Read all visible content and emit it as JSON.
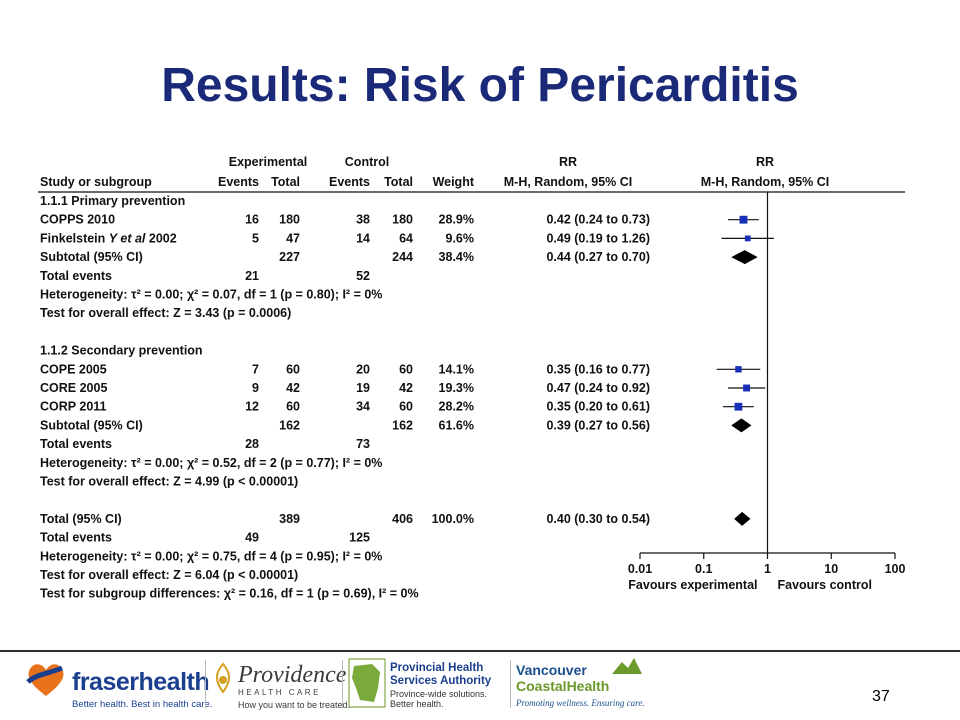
{
  "slide": {
    "title": "Results: Risk of Pericarditis",
    "page_number": "37"
  },
  "footer": {
    "fraser": {
      "name": "fraserhealth",
      "tagline": "Better health. Best in health care."
    },
    "providence": {
      "name": "Providence",
      "sub": "HEALTH CARE",
      "tagline": "How you want to be treated."
    },
    "phsa": {
      "name_line1": "Provincial Health",
      "name_line2": "Services Authority",
      "tag_line1": "Province-wide solutions.",
      "tag_line2": "Better health."
    },
    "vch": {
      "name_line1": "Vancouver",
      "name_line2": "CoastalHealth",
      "tagline": "Promoting wellness. Ensuring care."
    }
  },
  "chart_data": {
    "type": "forest",
    "headers": {
      "experimental": "Experimental",
      "control": "Control",
      "rr": "RR",
      "rr_plot": "RR",
      "study": "Study or subgroup",
      "events": "Events",
      "total": "Total",
      "events_c": "Events",
      "total_c": "Total",
      "weight": "Weight",
      "method": "M-H, Random, 95% CI",
      "method_plot": "M-H, Random, 95% CI"
    },
    "rows": [
      {
        "kind": "group",
        "label": "1.1.1 Primary prevention"
      },
      {
        "kind": "study",
        "label": "COPPS 2010",
        "e_events": "16",
        "e_total": "180",
        "c_events": "38",
        "c_total": "180",
        "weight": "28.9%",
        "rr_text": "0.42 (0.24 to 0.73)",
        "rr": 0.42,
        "lo": 0.24,
        "hi": 0.73,
        "w": 28.9
      },
      {
        "kind": "study",
        "label_parts": [
          "Finkelstein ",
          "Y et al",
          " 2002"
        ],
        "label": "Finkelstein Y et al 2002",
        "e_events": "5",
        "e_total": "47",
        "c_events": "14",
        "c_total": "64",
        "weight": "9.6%",
        "rr_text": "0.49 (0.19 to 1.26)",
        "rr": 0.49,
        "lo": 0.19,
        "hi": 1.26,
        "w": 9.6
      },
      {
        "kind": "subtotal",
        "label": "Subtotal (95% CI)",
        "e_total": "227",
        "c_total": "244",
        "weight": "38.4%",
        "rr_text": "0.44 (0.27 to 0.70)",
        "rr": 0.44,
        "lo": 0.27,
        "hi": 0.7
      },
      {
        "kind": "events",
        "label": "Total events",
        "e_events": "21",
        "c_events": "52"
      },
      {
        "kind": "note",
        "label": "Heterogeneity: τ² = 0.00; χ² = 0.07, df = 1 (p = 0.80); I² = 0%"
      },
      {
        "kind": "note",
        "label": "Test for overall effect: Z = 3.43 (p = 0.0006)"
      },
      {
        "kind": "blank"
      },
      {
        "kind": "group",
        "label": "1.1.2 Secondary prevention"
      },
      {
        "kind": "study",
        "label": "COPE 2005",
        "e_events": "7",
        "e_total": "60",
        "c_events": "20",
        "c_total": "60",
        "weight": "14.1%",
        "rr_text": "0.35 (0.16 to 0.77)",
        "rr": 0.35,
        "lo": 0.16,
        "hi": 0.77,
        "w": 14.1
      },
      {
        "kind": "study",
        "label": "CORE 2005",
        "e_events": "9",
        "e_total": "42",
        "c_events": "19",
        "c_total": "42",
        "weight": "19.3%",
        "rr_text": "0.47 (0.24 to 0.92)",
        "rr": 0.47,
        "lo": 0.24,
        "hi": 0.92,
        "w": 19.3
      },
      {
        "kind": "study",
        "label": "CORP 2011",
        "e_events": "12",
        "e_total": "60",
        "c_events": "34",
        "c_total": "60",
        "weight": "28.2%",
        "rr_text": "0.35 (0.20 to 0.61)",
        "rr": 0.35,
        "lo": 0.2,
        "hi": 0.61,
        "w": 28.2
      },
      {
        "kind": "subtotal",
        "label": "Subtotal (95% CI)",
        "e_total": "162",
        "c_total": "162",
        "weight": "61.6%",
        "rr_text": "0.39 (0.27 to 0.56)",
        "rr": 0.39,
        "lo": 0.27,
        "hi": 0.56
      },
      {
        "kind": "events",
        "label": "Total events",
        "e_events": "28",
        "c_events": "73"
      },
      {
        "kind": "note",
        "label": "Heterogeneity: τ² = 0.00; χ² = 0.52, df = 2 (p = 0.77); I² = 0%"
      },
      {
        "kind": "note",
        "label": "Test for overall effect: Z = 4.99 (p < 0.00001)"
      },
      {
        "kind": "blank"
      },
      {
        "kind": "subtotal",
        "label": "Total (95% CI)",
        "e_total": "389",
        "c_total": "406",
        "weight": "100.0%",
        "rr_text": "0.40 (0.30 to 0.54)",
        "rr": 0.4,
        "lo": 0.3,
        "hi": 0.54
      },
      {
        "kind": "events",
        "label": "Total events",
        "e_events": "49",
        "c_events": "125"
      },
      {
        "kind": "note",
        "label": "Heterogeneity: τ² = 0.00; χ² = 0.75, df = 4 (p = 0.95); I² = 0%"
      },
      {
        "kind": "note",
        "label": "Test for overall effect: Z = 6.04 (p < 0.00001)"
      },
      {
        "kind": "note",
        "label": "Test for subgroup differences: χ² = 0.16, df = 1 (p = 0.69), I² = 0%"
      }
    ],
    "axis": {
      "scale": "log",
      "ticks": [
        0.01,
        0.1,
        1,
        10,
        100
      ],
      "tick_labels": [
        "0.01",
        "0.1",
        "1",
        "10",
        "100"
      ],
      "null_value": 1,
      "favours_left": "Favours experimental",
      "favours_right": "Favours control"
    },
    "colors": {
      "study_marker": "#1a2fb8",
      "diamond": "#000000",
      "title": "#1b2a78"
    }
  }
}
